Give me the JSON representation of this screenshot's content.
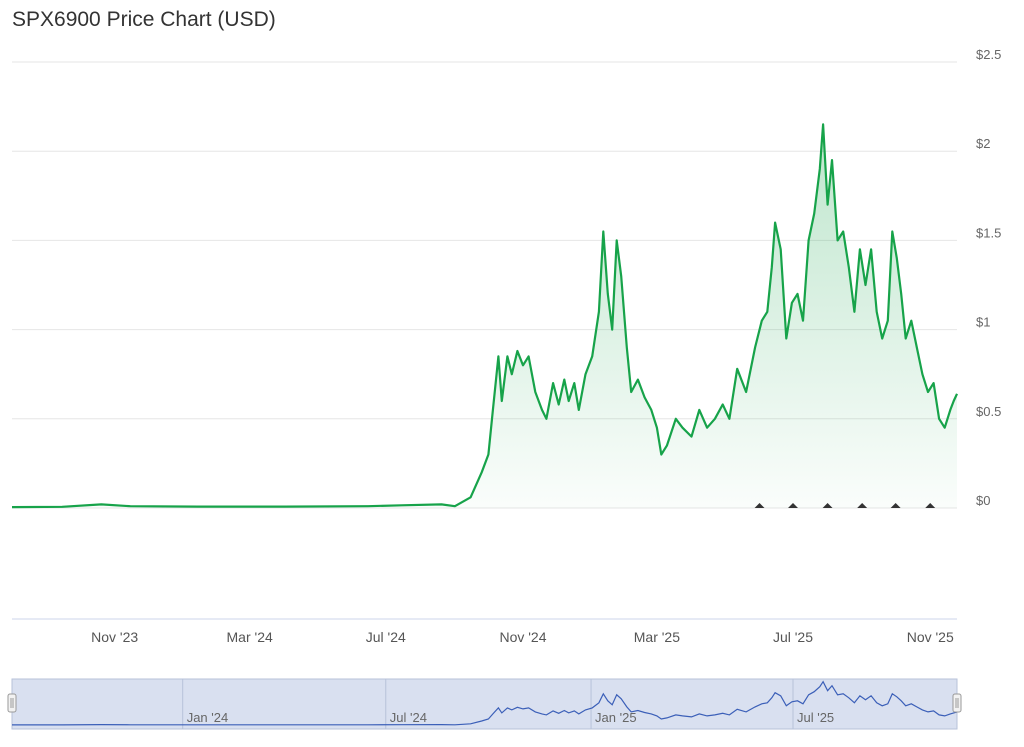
{
  "title": "SPX6900 Price Chart (USD)",
  "colors": {
    "line": "#17a34a",
    "fill_top": "#16a34a",
    "grid": "#e6e6e6",
    "navigator_bg": "#ccd6eb",
    "navigator_line": "#3b5fb8",
    "marker": "#333333"
  },
  "chart_data": {
    "type": "area",
    "title": "SPX6900 Price Chart (USD)",
    "y_unit": "USD",
    "ylim": [
      0,
      2.5
    ],
    "y_ticks": [
      {
        "value": 0,
        "label": "$0"
      },
      {
        "value": 0.5,
        "label": "$0.5"
      },
      {
        "value": 1,
        "label": "$1"
      },
      {
        "value": 1.5,
        "label": "$1.5"
      },
      {
        "value": 2,
        "label": "$2"
      },
      {
        "value": 2.5,
        "label": "$2.5"
      }
    ],
    "xlim": [
      "2023-08-01",
      "2025-11-25"
    ],
    "x_ticks": [
      {
        "date": "2023-11-01",
        "label": "Nov '23"
      },
      {
        "date": "2024-03-01",
        "label": "Mar '24"
      },
      {
        "date": "2024-07-01",
        "label": "Jul '24"
      },
      {
        "date": "2024-11-01",
        "label": "Nov '24"
      },
      {
        "date": "2025-03-01",
        "label": "Mar '25"
      },
      {
        "date": "2025-07-01",
        "label": "Jul '25"
      },
      {
        "date": "2025-11-01",
        "label": "Nov '25"
      }
    ],
    "grid": true,
    "legend": "none",
    "series": [
      {
        "points": [
          [
            "2023-08-01",
            0.005
          ],
          [
            "2023-09-15",
            0.007
          ],
          [
            "2023-10-20",
            0.02
          ],
          [
            "2023-11-15",
            0.01
          ],
          [
            "2024-01-15",
            0.008
          ],
          [
            "2024-04-01",
            0.008
          ],
          [
            "2024-06-15",
            0.01
          ],
          [
            "2024-07-15",
            0.015
          ],
          [
            "2024-08-20",
            0.02
          ],
          [
            "2024-09-01",
            0.01
          ],
          [
            "2024-09-15",
            0.06
          ],
          [
            "2024-09-25",
            0.2
          ],
          [
            "2024-10-01",
            0.3
          ],
          [
            "2024-10-05",
            0.55
          ],
          [
            "2024-10-10",
            0.85
          ],
          [
            "2024-10-13",
            0.6
          ],
          [
            "2024-10-18",
            0.85
          ],
          [
            "2024-10-22",
            0.75
          ],
          [
            "2024-10-27",
            0.88
          ],
          [
            "2024-11-01",
            0.8
          ],
          [
            "2024-11-06",
            0.85
          ],
          [
            "2024-11-12",
            0.65
          ],
          [
            "2024-11-18",
            0.55
          ],
          [
            "2024-11-22",
            0.5
          ],
          [
            "2024-11-28",
            0.7
          ],
          [
            "2024-12-03",
            0.58
          ],
          [
            "2024-12-08",
            0.72
          ],
          [
            "2024-12-12",
            0.6
          ],
          [
            "2024-12-17",
            0.7
          ],
          [
            "2024-12-21",
            0.55
          ],
          [
            "2024-12-27",
            0.75
          ],
          [
            "2025-01-02",
            0.85
          ],
          [
            "2025-01-08",
            1.1
          ],
          [
            "2025-01-12",
            1.55
          ],
          [
            "2025-01-16",
            1.2
          ],
          [
            "2025-01-20",
            1.0
          ],
          [
            "2025-01-24",
            1.5
          ],
          [
            "2025-01-28",
            1.3
          ],
          [
            "2025-02-02",
            0.9
          ],
          [
            "2025-02-06",
            0.65
          ],
          [
            "2025-02-12",
            0.72
          ],
          [
            "2025-02-18",
            0.62
          ],
          [
            "2025-02-24",
            0.55
          ],
          [
            "2025-03-01",
            0.45
          ],
          [
            "2025-03-05",
            0.3
          ],
          [
            "2025-03-10",
            0.35
          ],
          [
            "2025-03-18",
            0.5
          ],
          [
            "2025-03-24",
            0.45
          ],
          [
            "2025-04-01",
            0.4
          ],
          [
            "2025-04-08",
            0.55
          ],
          [
            "2025-04-15",
            0.45
          ],
          [
            "2025-04-22",
            0.5
          ],
          [
            "2025-04-29",
            0.58
          ],
          [
            "2025-05-05",
            0.5
          ],
          [
            "2025-05-12",
            0.78
          ],
          [
            "2025-05-20",
            0.65
          ],
          [
            "2025-05-28",
            0.9
          ],
          [
            "2025-06-03",
            1.05
          ],
          [
            "2025-06-08",
            1.1
          ],
          [
            "2025-06-12",
            1.35
          ],
          [
            "2025-06-15",
            1.6
          ],
          [
            "2025-06-20",
            1.45
          ],
          [
            "2025-06-25",
            0.95
          ],
          [
            "2025-06-30",
            1.15
          ],
          [
            "2025-07-05",
            1.2
          ],
          [
            "2025-07-10",
            1.05
          ],
          [
            "2025-07-15",
            1.5
          ],
          [
            "2025-07-20",
            1.65
          ],
          [
            "2025-07-25",
            1.9
          ],
          [
            "2025-07-28",
            2.15
          ],
          [
            "2025-08-01",
            1.7
          ],
          [
            "2025-08-05",
            1.95
          ],
          [
            "2025-08-10",
            1.5
          ],
          [
            "2025-08-15",
            1.55
          ],
          [
            "2025-08-20",
            1.35
          ],
          [
            "2025-08-25",
            1.1
          ],
          [
            "2025-08-30",
            1.45
          ],
          [
            "2025-09-04",
            1.25
          ],
          [
            "2025-09-09",
            1.45
          ],
          [
            "2025-09-14",
            1.1
          ],
          [
            "2025-09-19",
            0.95
          ],
          [
            "2025-09-24",
            1.05
          ],
          [
            "2025-09-28",
            1.55
          ],
          [
            "2025-10-02",
            1.4
          ],
          [
            "2025-10-06",
            1.2
          ],
          [
            "2025-10-10",
            0.95
          ],
          [
            "2025-10-15",
            1.05
          ],
          [
            "2025-10-20",
            0.9
          ],
          [
            "2025-10-25",
            0.75
          ],
          [
            "2025-10-30",
            0.65
          ],
          [
            "2025-11-04",
            0.7
          ],
          [
            "2025-11-09",
            0.5
          ],
          [
            "2025-11-14",
            0.45
          ],
          [
            "2025-11-19",
            0.55
          ],
          [
            "2025-11-22",
            0.6
          ],
          [
            "2025-11-25",
            0.64
          ]
        ]
      }
    ],
    "markers": [
      "2025-06-01",
      "2025-07-01",
      "2025-08-01",
      "2025-09-01",
      "2025-10-01",
      "2025-11-01"
    ]
  },
  "navigator": {
    "xlim": [
      "2023-08-01",
      "2025-11-25"
    ],
    "labels": [
      {
        "date": "2024-01-01",
        "label": "Jan '24"
      },
      {
        "date": "2024-07-01",
        "label": "Jul '24"
      },
      {
        "date": "2025-01-01",
        "label": "Jan '25"
      },
      {
        "date": "2025-07-01",
        "label": "Jul '25"
      }
    ]
  }
}
